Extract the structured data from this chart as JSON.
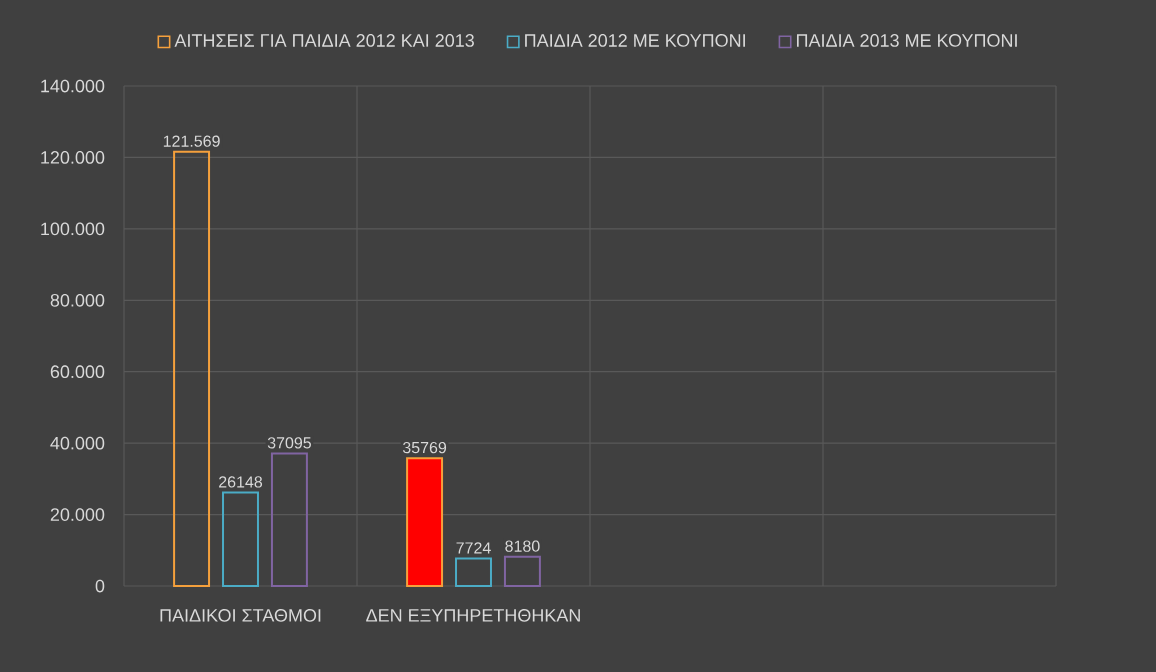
{
  "chart_data": {
    "type": "bar",
    "categories": [
      "ΠΑΙΔΙΚΟΙ ΣΤΑΘΜΟΙ",
      "ΔΕΝ ΕΞΥΠΗΡΕΤΗΘΗΚΑΝ",
      null,
      null
    ],
    "series": [
      {
        "name": "ΑΙΤΗΣΕΙΣ ΓΙΑ ΠΑΙΔΙΑ 2012 ΚΑΙ 2013",
        "color": "#f5a03c",
        "colors": [
          null,
          "#ff0000",
          null,
          null
        ],
        "values": [
          121569,
          35769,
          null,
          null
        ],
        "value_labels": [
          "121.569",
          "35769",
          null,
          null
        ]
      },
      {
        "name": "ΠΑΙΔΙΑ 2012 ΜΕ ΚΟΥΠΟΝΙ",
        "color": "#4bacc6",
        "values": [
          26148,
          7724,
          null,
          null
        ],
        "value_labels": [
          "26148",
          "7724",
          null,
          null
        ]
      },
      {
        "name": "ΠΑΙΔΙΑ 2013 ΜΕ ΚΟΥΠΟΝΙ",
        "color": "#8064a2",
        "values": [
          37095,
          8180,
          null,
          null
        ],
        "value_labels": [
          "37095",
          "8180",
          null,
          null
        ]
      }
    ],
    "ylim": [
      0,
      140000
    ],
    "yticks": [
      0,
      {
        "value": 20000,
        "label": "20.000"
      },
      {
        "value": 40000,
        "label": "40.000"
      },
      {
        "value": 60000,
        "label": "60.000"
      },
      {
        "value": 80000,
        "label": "80.000"
      },
      {
        "value": 100000,
        "label": "100.000"
      },
      {
        "value": 120000,
        "label": "120.000"
      },
      {
        "value": 140000,
        "label": "140.000"
      }
    ],
    "grid": true,
    "legend": "top"
  }
}
